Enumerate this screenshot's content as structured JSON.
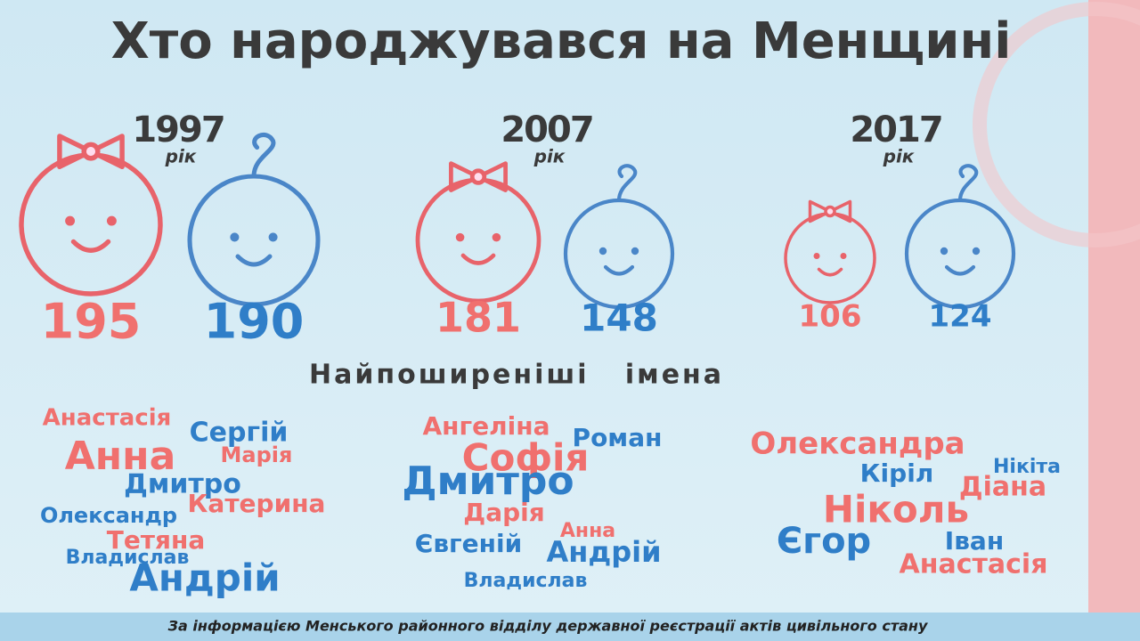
{
  "title": "Хто народжувався на Менщині",
  "years": [
    {
      "year": 1997,
      "unit": "рік",
      "girls": 195,
      "boys": 190,
      "names": [
        {
          "text": "Анастасія",
          "color": "#f0706e"
        },
        {
          "text": "Анна",
          "color": "#f0706e"
        },
        {
          "text": "Сергій",
          "color": "#2f7ec8"
        },
        {
          "text": "Марія",
          "color": "#f0706e"
        },
        {
          "text": "Дмитро",
          "color": "#2f7ec8"
        },
        {
          "text": "Олександр",
          "color": "#2f7ec8"
        },
        {
          "text": "Катерина",
          "color": "#f0706e"
        },
        {
          "text": "Тетяна",
          "color": "#f0706e"
        },
        {
          "text": "Владислав",
          "color": "#2f7ec8"
        },
        {
          "text": "Андрій",
          "color": "#2f7ec8"
        }
      ]
    },
    {
      "year": 2007,
      "unit": "рік",
      "girls": 181,
      "boys": 148,
      "names": [
        {
          "text": "Ангеліна",
          "color": "#f0706e"
        },
        {
          "text": "Роман",
          "color": "#2f7ec8"
        },
        {
          "text": "Софія",
          "color": "#f0706e"
        },
        {
          "text": "Дмитро",
          "color": "#2f7ec8"
        },
        {
          "text": "Дарія",
          "color": "#f0706e"
        },
        {
          "text": "Анна",
          "color": "#f0706e"
        },
        {
          "text": "Євгеній",
          "color": "#2f7ec8"
        },
        {
          "text": "Андрій",
          "color": "#2f7ec8"
        },
        {
          "text": "Владислав",
          "color": "#2f7ec8"
        }
      ]
    },
    {
      "year": 2017,
      "unit": "рік",
      "girls": 106,
      "boys": 124,
      "names": [
        {
          "text": "Олександра",
          "color": "#f0706e"
        },
        {
          "text": "Нікіта",
          "color": "#2f7ec8"
        },
        {
          "text": "Кіріл",
          "color": "#2f7ec8"
        },
        {
          "text": "Діана",
          "color": "#f0706e"
        },
        {
          "text": "Ніколь",
          "color": "#f0706e"
        },
        {
          "text": "Єгор",
          "color": "#2f7ec8"
        },
        {
          "text": "Іван",
          "color": "#2f7ec8"
        },
        {
          "text": "Анастасія",
          "color": "#f0706e"
        }
      ]
    }
  ],
  "subtitle": "Найпоширеніші   імена",
  "footer": "За інформацією Менського районного відділу  державної реєстрації актів цивільного стану"
}
